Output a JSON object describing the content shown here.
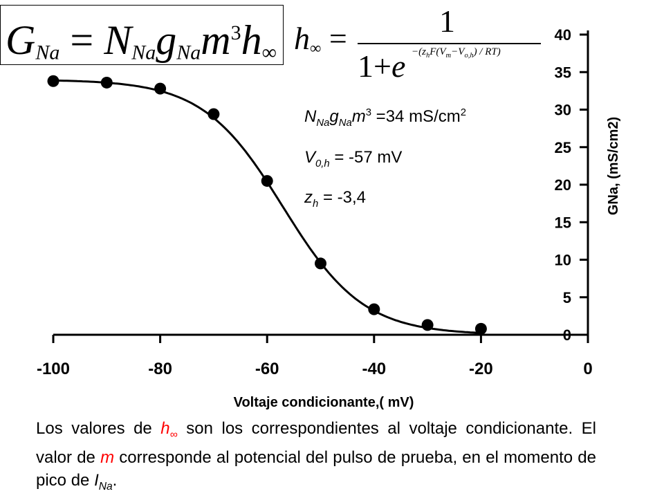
{
  "formulas": {
    "gna": {
      "G": "G",
      "G_sub": "Na",
      "eq": "=",
      "N": "N",
      "N_sub": "Na",
      "g": "g",
      "g_sub": "Na",
      "m": "m",
      "m_exp": "3",
      "h": "h",
      "h_sub": "∞"
    },
    "hinf": {
      "lhs": "h",
      "lhs_sub": "∞",
      "eq": "=",
      "numerator": "1",
      "denominator": "1+",
      "e": "e",
      "exponent": "−(z",
      "exponent_sub1": "h",
      "exponent_mid": "F(V",
      "exponent_sub2": "m",
      "exponent_mid2": "−V",
      "exponent_sub3": "o,h",
      "exponent_end": ") / RT)"
    }
  },
  "params": {
    "p1": {
      "N": "N",
      "N_sub": "Na",
      "g": "g",
      "g_sub": "Na",
      "m": "m",
      "m_exp": "3",
      "value": " =34 mS/cm",
      "unit_exp": "2"
    },
    "p2": {
      "V": "V",
      "V_sub": "0,h",
      "value": " = -57 mV"
    },
    "p3": {
      "z": "z",
      "z_sub": "h",
      "value": " = -3,4"
    }
  },
  "chart_data": {
    "type": "scatter",
    "title": "",
    "xlabel": "Voltaje condicionante,( mV)",
    "ylabel": "GNa, (mS/cm2)",
    "xlim": [
      -100,
      0
    ],
    "ylim": [
      0,
      40
    ],
    "xticks": [
      -100,
      -80,
      -60,
      -40,
      -20,
      0
    ],
    "yticks": [
      0,
      5,
      10,
      15,
      20,
      25,
      30,
      35,
      40
    ],
    "y_axis_position": "right",
    "grid": false,
    "series": [
      {
        "kind": "points",
        "x": [
          -100,
          -90,
          -80,
          -70,
          -60,
          -50,
          -40,
          -30,
          -20
        ],
        "y": [
          33.8,
          33.6,
          32.8,
          29.4,
          20.5,
          9.5,
          3.4,
          1.3,
          0.8
        ]
      },
      {
        "kind": "fit-curve",
        "model": "34/(1+exp((V+57)/7.5))"
      }
    ]
  },
  "caption": {
    "t1": "Los valores de ",
    "h": "h",
    "h_sub": "∞",
    "t2": " son los correspondientes al voltaje condicionante. El valor de ",
    "m": "m",
    "t3": " corresponde al potencial del pulso de prueba, en el momento de pico de ",
    "I": "I",
    "I_sub": "Na",
    "t4": "."
  },
  "colors": {
    "text": "#000000",
    "highlight": "#ff0000",
    "background": "#ffffff"
  }
}
